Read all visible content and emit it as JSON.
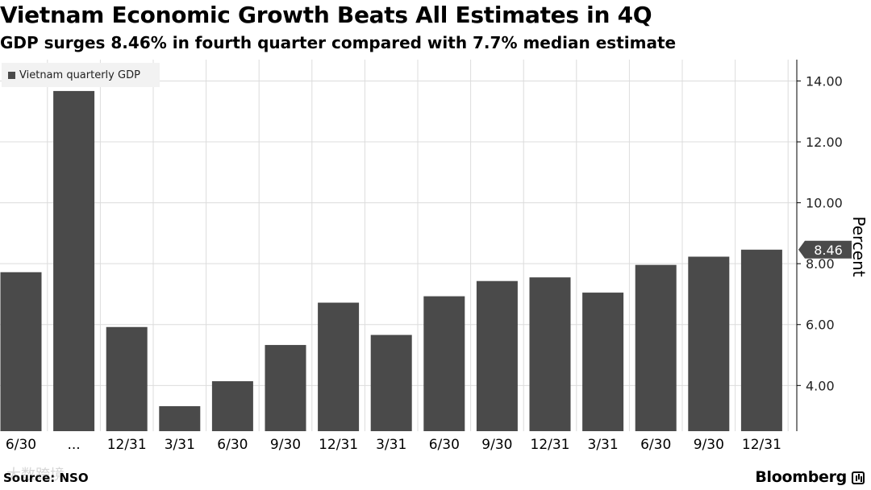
{
  "header": {
    "title": "Vietnam Economic Growth Beats All Estimates in 4Q",
    "subtitle": "GDP surges 8.46% in fourth quarter compared with 7.7% median estimate"
  },
  "footer": {
    "source": "Source: NSO",
    "brand": "Bloomberg",
    "watermark": "大数跨境"
  },
  "colors": {
    "bar": "#4a4a4a",
    "grid": "#dcdcdc",
    "axis": "#000000",
    "callout": "#4a4a4a"
  },
  "chart_data": {
    "type": "bar",
    "title": "Vietnam Economic Growth Beats All Estimates in 4Q",
    "subtitle": "GDP surges 8.46% in fourth quarter compared with 7.7% median estimate",
    "categories": [
      "6/30",
      "...",
      "12/31",
      "3/31",
      "6/30",
      "9/30",
      "12/31",
      "3/31",
      "6/30",
      "9/30",
      "12/31",
      "3/31",
      "6/30",
      "9/30",
      "12/31"
    ],
    "series": [
      {
        "name": "Vietnam quarterly GDP",
        "values": [
          7.72,
          13.67,
          5.92,
          3.32,
          4.14,
          5.33,
          6.72,
          5.66,
          6.93,
          7.43,
          7.55,
          7.05,
          7.96,
          8.23,
          8.46
        ]
      }
    ],
    "y_ticks": [
      "4.00",
      "6.00",
      "8.00",
      "10.00",
      "12.00",
      "14.00"
    ],
    "ylim": [
      2.5,
      14.7
    ],
    "ylabel": "Percent",
    "y_axis_side": "right",
    "grid": true,
    "legend_position": "top-left",
    "callout": {
      "label": "8.46",
      "value": 8.46
    }
  }
}
